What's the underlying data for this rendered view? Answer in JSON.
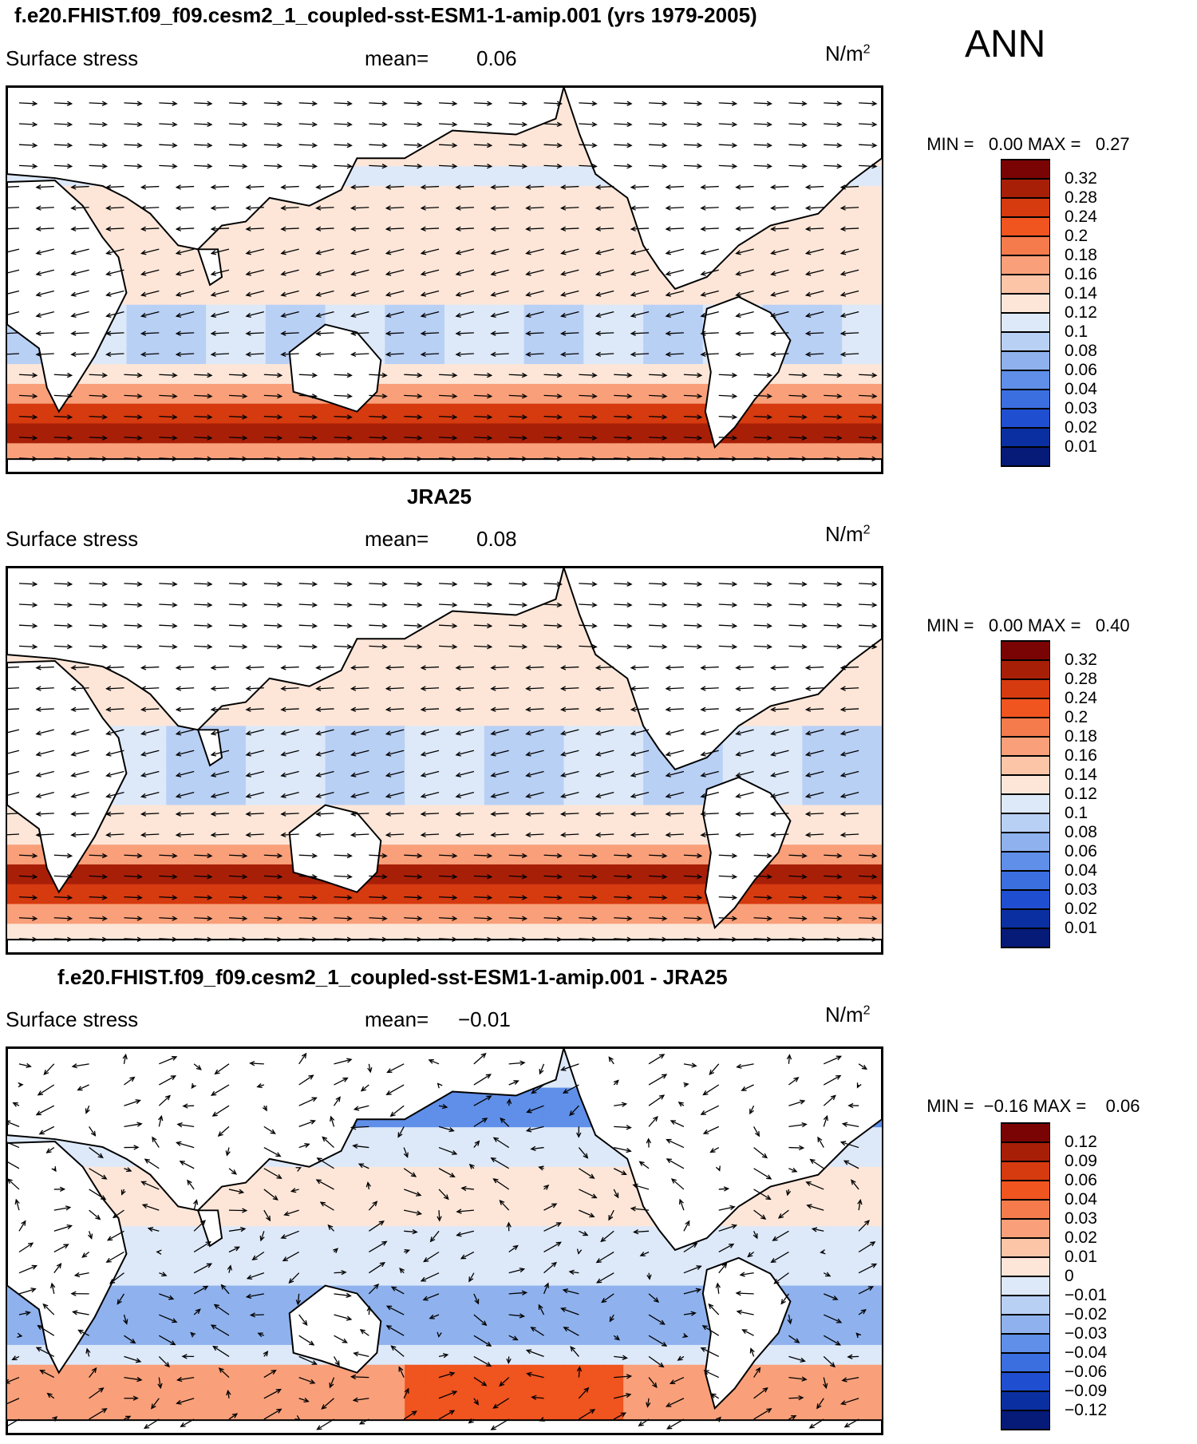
{
  "season": "ANN",
  "units": {
    "base": "N/m",
    "exp": "2"
  },
  "panels": [
    {
      "title": "f.e20.FHIST.f09_f09.cesm2_1_coupled-sst-ESM1-1-amip.001 (yrs 1979-2005)",
      "variable": "Surface stress",
      "mean_label": "mean=",
      "mean": "0.06",
      "min_label": "MIN =",
      "min": "0.00",
      "max_label": "MAX =",
      "max": "0.27",
      "colorbar": [
        "0.32",
        "0.28",
        "0.24",
        "0.2",
        "0.18",
        "0.16",
        "0.14",
        "0.12",
        "0.1",
        "0.08",
        "0.06",
        "0.04",
        "0.03",
        "0.02",
        "0.01"
      ]
    },
    {
      "title": "JRA25",
      "variable": "Surface stress",
      "mean_label": "mean=",
      "mean": "0.08",
      "min_label": "MIN =",
      "min": "0.00",
      "max_label": "MAX =",
      "max": "0.40",
      "colorbar": [
        "0.32",
        "0.28",
        "0.24",
        "0.2",
        "0.18",
        "0.16",
        "0.14",
        "0.12",
        "0.1",
        "0.08",
        "0.06",
        "0.04",
        "0.03",
        "0.02",
        "0.01"
      ]
    },
    {
      "title": "f.e20.FHIST.f09_f09.cesm2_1_coupled-sst-ESM1-1-amip.001 - JRA25",
      "variable": "Surface stress",
      "mean_label": "mean=",
      "mean": "−0.01",
      "min_label": "MIN =",
      "min": "−0.16",
      "max_label": "MAX =",
      "max": "0.06",
      "colorbar": [
        "0.12",
        "0.09",
        "0.06",
        "0.04",
        "0.03",
        "0.02",
        "0.01",
        "0",
        "−0.01",
        "−0.02",
        "−0.03",
        "−0.04",
        "−0.06",
        "−0.09",
        "−0.12"
      ]
    }
  ],
  "colors": {
    "ramp": [
      "#7a0403",
      "#a81f08",
      "#d63a0f",
      "#f0541f",
      "#f57b4d",
      "#f9a07a",
      "#fcc5a8",
      "#fde6d8",
      "#dde9f9",
      "#b9d0f5",
      "#8fb2ee",
      "#5f8fe8",
      "#3b6fe0",
      "#1f4fd0",
      "#0a2fa0",
      "#061a78"
    ],
    "land": "#ffffff",
    "coast": "#000000"
  }
}
